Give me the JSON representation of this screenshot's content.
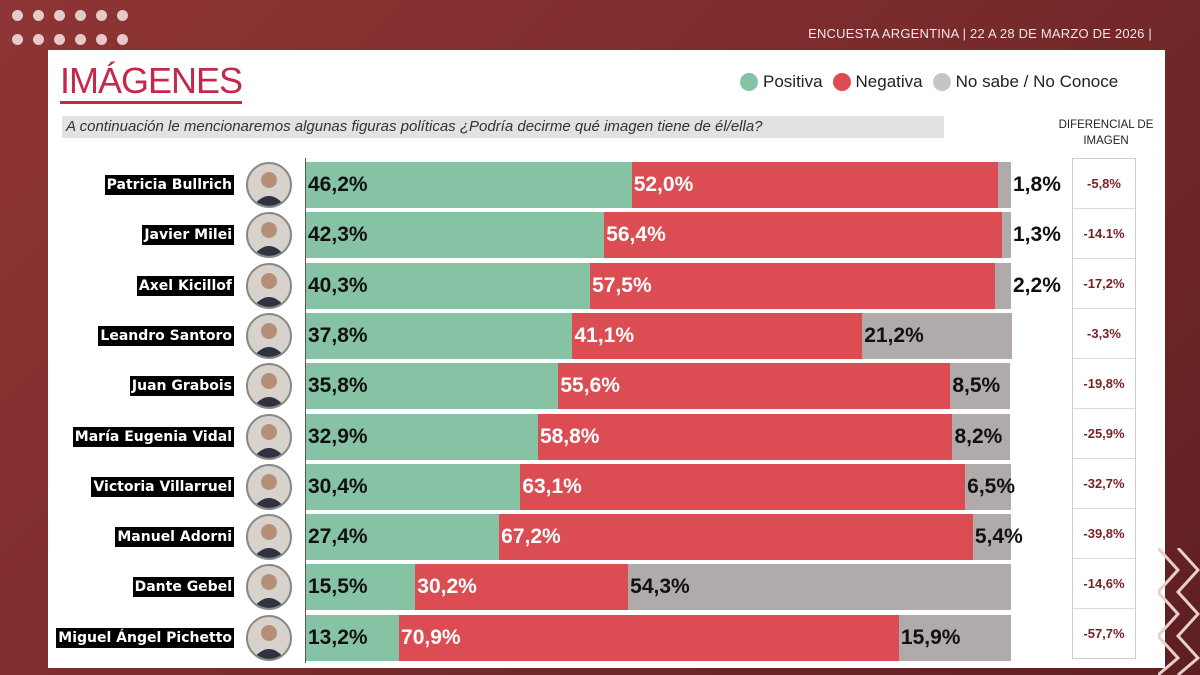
{
  "header": {
    "caption": "ENCUESTA ARGENTINA | 22 A 28 DE MARZO DE 2026 |"
  },
  "title": "IMÁGENES",
  "question": "A continuación le mencionaremos algunas figuras políticas ¿Podría decirme qué imagen tiene de él/ella?",
  "diff_header": "DIFERENCIAL DE IMAGEN",
  "colors": {
    "positiva": "#86c2a4",
    "negativa": "#db4d52",
    "no_sabe": "#b0aaaa",
    "background": "#7e2c2c",
    "title": "#c4294a"
  },
  "chart_data": {
    "type": "bar",
    "orientation": "horizontal",
    "stacked": true,
    "legend_position": "top-right",
    "xlim": [
      0,
      100
    ],
    "categories": [
      "Patricia Bullrich",
      "Javier Milei",
      "Axel Kicillof",
      "Leandro Santoro",
      "Juan Grabois",
      "María Eugenia Vidal",
      "Victoria Villarruel",
      "Manuel Adorni",
      "Dante Gebel",
      "Miguel Ángel Pichetto"
    ],
    "series": [
      {
        "name": "Positiva",
        "values": [
          46.2,
          42.3,
          40.3,
          37.8,
          35.8,
          32.9,
          30.4,
          27.4,
          15.5,
          13.2
        ]
      },
      {
        "name": "Negativa",
        "values": [
          52.0,
          56.4,
          57.5,
          41.1,
          55.6,
          58.8,
          63.1,
          67.2,
          30.2,
          70.9
        ]
      },
      {
        "name": "No sabe / No Conoce",
        "values": [
          1.8,
          1.3,
          2.2,
          21.2,
          8.5,
          8.2,
          6.5,
          5.4,
          54.3,
          15.9
        ]
      }
    ],
    "diferencial": [
      "-5,8%",
      "-14.1%",
      "-17,2%",
      "-3,3%",
      "-19,8%",
      "-25,9%",
      "-32,7%",
      "-39,8%",
      "-14,6%",
      "-57,7%"
    ]
  }
}
